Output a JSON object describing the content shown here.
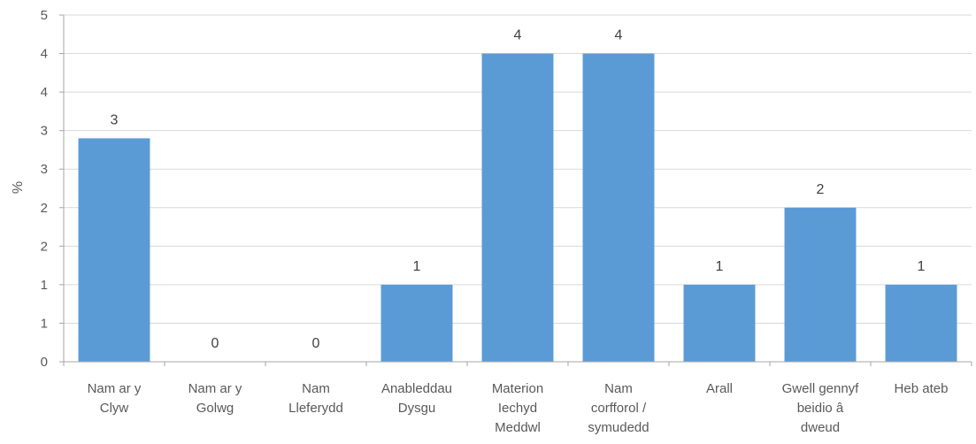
{
  "chart_data": {
    "type": "bar",
    "title": "",
    "xlabel": "",
    "ylabel": "%",
    "ylim": [
      0,
      4.5
    ],
    "y_ticks": [
      0,
      0.5,
      1,
      1.5,
      2,
      2.5,
      3,
      3.5,
      4,
      4.5
    ],
    "y_tick_labels": [
      "0",
      "1",
      "1",
      "2",
      "2",
      "3",
      "3",
      "4",
      "4",
      "5"
    ],
    "grid": true,
    "legend": "none",
    "bar_color": "#5B9BD5",
    "categories": [
      [
        "Nam ar y",
        "Clyw"
      ],
      [
        "Nam ar y",
        "Golwg"
      ],
      [
        "Nam",
        "Lleferydd"
      ],
      [
        "Anableddau",
        "Dysgu"
      ],
      [
        "Materion",
        "Iechyd",
        "Meddwl"
      ],
      [
        "Nam",
        "corfforol /",
        "symudedd"
      ],
      [
        "Arall"
      ],
      [
        "Gwell gennyf",
        "beidio â",
        "dweud"
      ],
      [
        "Heb ateb"
      ]
    ],
    "values": [
      2.9,
      0,
      0,
      1,
      4,
      4,
      1,
      2,
      1
    ],
    "data_labels": [
      "3",
      "0",
      "0",
      "1",
      "4",
      "4",
      "1",
      "2",
      "1"
    ]
  }
}
